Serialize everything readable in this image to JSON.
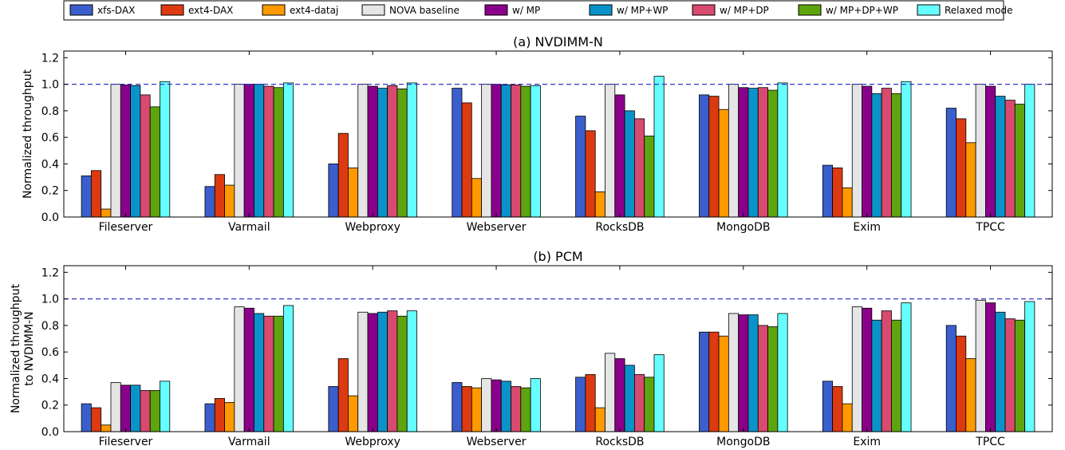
{
  "legend": [
    {
      "name": "xfs-DAX",
      "color": "#3a5fcd"
    },
    {
      "name": "ext4-DAX",
      "color": "#dd3a10"
    },
    {
      "name": "ext4-dataj",
      "color": "#ff9900"
    },
    {
      "name": "NOVA baseline",
      "color": "#e5e5e5"
    },
    {
      "name": "w/ MP",
      "color": "#8b008b"
    },
    {
      "name": "w/ MP+WP",
      "color": "#0a93c8"
    },
    {
      "name": "w/ MP+DP",
      "color": "#d84a6e"
    },
    {
      "name": "w/ MP+DP+WP",
      "color": "#5ea40e"
    },
    {
      "name": "Relaxed mode",
      "color": "#66ffff"
    }
  ],
  "reference_line_color": "#3333cc",
  "chart_data": [
    {
      "type": "bar",
      "title": "(a) NVDIMM-N",
      "ylabel": "Normalized throughput",
      "ylim": [
        0,
        1.25
      ],
      "yticks": [
        "0.0",
        "0.2",
        "0.4",
        "0.6",
        "0.8",
        "1.0",
        "1.2"
      ],
      "reference_line": 1.0,
      "categories": [
        "Fileserver",
        "Varmail",
        "Webproxy",
        "Webserver",
        "RocksDB",
        "MongoDB",
        "Exim",
        "TPCC"
      ],
      "series": [
        {
          "name": "xfs-DAX",
          "values": [
            0.31,
            0.23,
            0.4,
            0.97,
            0.76,
            0.92,
            0.39,
            0.82
          ]
        },
        {
          "name": "ext4-DAX",
          "values": [
            0.35,
            0.32,
            0.63,
            0.86,
            0.65,
            0.91,
            0.37,
            0.74
          ]
        },
        {
          "name": "ext4-dataj",
          "values": [
            0.06,
            0.24,
            0.37,
            0.29,
            0.19,
            0.81,
            0.22,
            0.56
          ]
        },
        {
          "name": "NOVA baseline",
          "values": [
            1.0,
            1.0,
            1.0,
            1.0,
            1.0,
            1.0,
            1.0,
            1.0
          ]
        },
        {
          "name": "w/ MP",
          "values": [
            0.995,
            1.0,
            0.985,
            1.0,
            0.92,
            0.975,
            0.985,
            0.985
          ]
        },
        {
          "name": "w/ MP+WP",
          "values": [
            0.99,
            1.0,
            0.97,
            0.995,
            0.8,
            0.97,
            0.93,
            0.91
          ]
        },
        {
          "name": "w/ MP+DP",
          "values": [
            0.92,
            0.985,
            0.99,
            0.995,
            0.74,
            0.975,
            0.97,
            0.88
          ]
        },
        {
          "name": "w/ MP+DP+WP",
          "values": [
            0.83,
            0.975,
            0.965,
            0.985,
            0.61,
            0.955,
            0.93,
            0.85
          ]
        },
        {
          "name": "Relaxed mode",
          "values": [
            1.02,
            1.01,
            1.01,
            0.99,
            1.06,
            1.01,
            1.02,
            1.0
          ]
        }
      ]
    },
    {
      "type": "bar",
      "title": "(b) PCM",
      "ylabel": "Normalized throughput\nto NVDIMM-N",
      "ylim": [
        0,
        1.25
      ],
      "yticks": [
        "0.0",
        "0.2",
        "0.4",
        "0.6",
        "0.8",
        "1.0",
        "1.2"
      ],
      "reference_line": 1.0,
      "categories": [
        "Fileserver",
        "Varmail",
        "Webproxy",
        "Webserver",
        "RocksDB",
        "MongoDB",
        "Exim",
        "TPCC"
      ],
      "series": [
        {
          "name": "xfs-DAX",
          "values": [
            0.21,
            0.21,
            0.34,
            0.37,
            0.41,
            0.75,
            0.38,
            0.8
          ]
        },
        {
          "name": "ext4-DAX",
          "values": [
            0.18,
            0.25,
            0.55,
            0.34,
            0.43,
            0.75,
            0.34,
            0.72
          ]
        },
        {
          "name": "ext4-dataj",
          "values": [
            0.05,
            0.22,
            0.27,
            0.33,
            0.18,
            0.72,
            0.21,
            0.55
          ]
        },
        {
          "name": "NOVA baseline",
          "values": [
            0.37,
            0.94,
            0.9,
            0.4,
            0.59,
            0.89,
            0.94,
            0.99
          ]
        },
        {
          "name": "w/ MP",
          "values": [
            0.35,
            0.93,
            0.89,
            0.39,
            0.55,
            0.88,
            0.93,
            0.97
          ]
        },
        {
          "name": "w/ MP+WP",
          "values": [
            0.35,
            0.89,
            0.9,
            0.38,
            0.5,
            0.88,
            0.84,
            0.9
          ]
        },
        {
          "name": "w/ MP+DP",
          "values": [
            0.31,
            0.87,
            0.91,
            0.34,
            0.43,
            0.8,
            0.91,
            0.85
          ]
        },
        {
          "name": "w/ MP+DP+WP",
          "values": [
            0.31,
            0.87,
            0.87,
            0.33,
            0.41,
            0.79,
            0.84,
            0.84
          ]
        },
        {
          "name": "Relaxed mode",
          "values": [
            0.38,
            0.95,
            0.91,
            0.4,
            0.58,
            0.89,
            0.97,
            0.98
          ]
        }
      ]
    }
  ]
}
